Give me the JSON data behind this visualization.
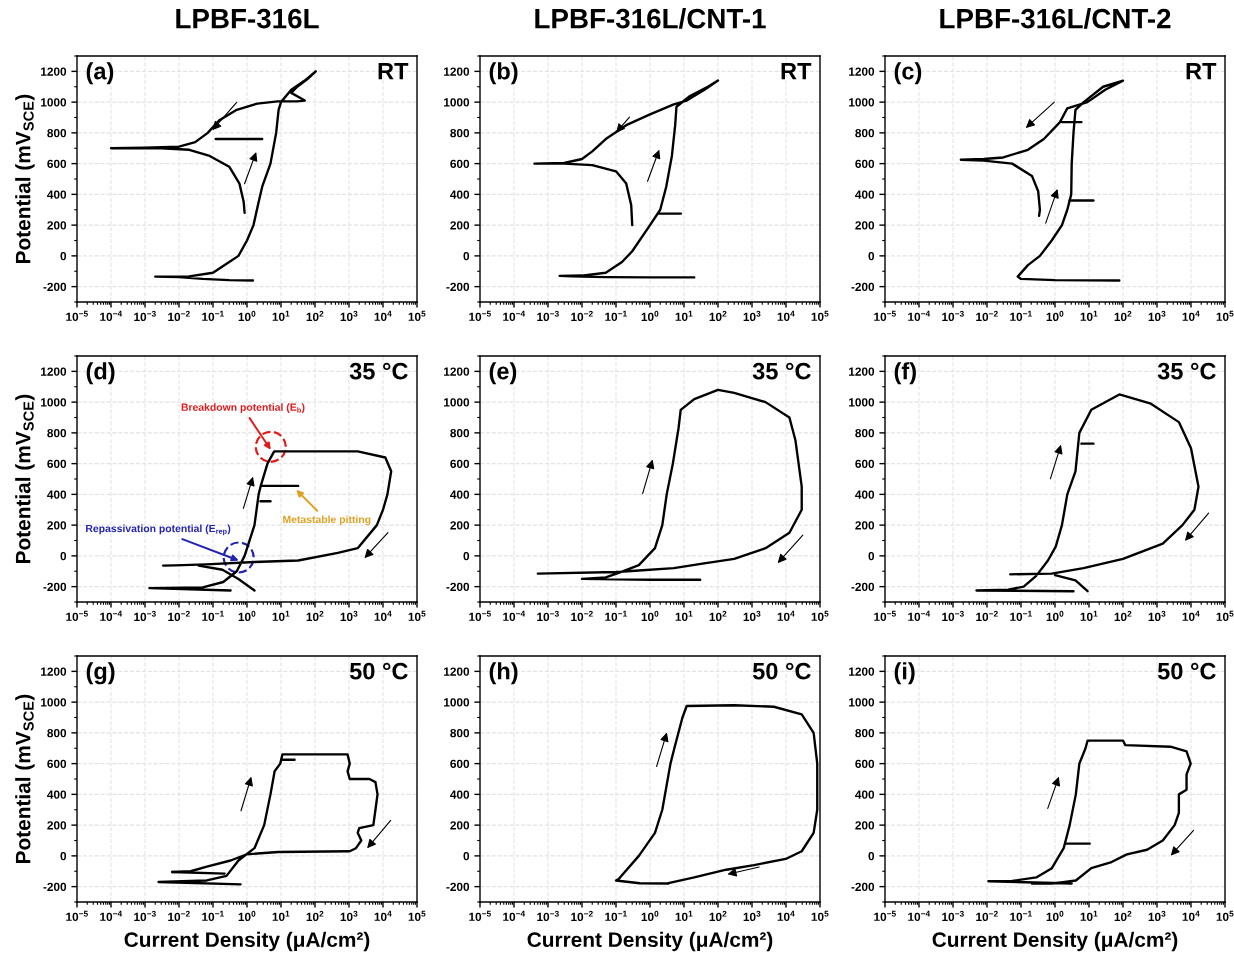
{
  "chart_data": [
    {
      "type": "line",
      "title": "LPBF-316L",
      "ylabel": "Potential (mV$_{SCE}$)",
      "annotations": [
        "(a)",
        "RT"
      ],
      "log": "x",
      "xlim": [
        1e-05,
        100000
      ],
      "xticks": [
        {
          "value": 1e-05,
          "label": "10$^{−5}$"
        },
        {
          "value": 0.0001,
          "label": "10$^{−4}$"
        },
        {
          "value": 0.001,
          "label": "10$^{−3}$"
        },
        {
          "value": 0.01,
          "label": "10$^{−2}$"
        },
        {
          "value": 0.1,
          "label": "10$^{−1}$"
        },
        {
          "value": 1,
          "label": "10$^{0}$"
        },
        {
          "value": 10,
          "label": "10$^{1}$"
        },
        {
          "value": 100,
          "label": "10$^{2}$"
        },
        {
          "value": 1000,
          "label": "10$^{3}$"
        },
        {
          "value": 10000,
          "label": "10$^{4}$"
        },
        {
          "value": 100000,
          "label": "10$^{5}$"
        }
      ],
      "ylim": [
        -300,
        1300
      ],
      "yticks": [
        -200,
        0,
        200,
        400,
        600,
        800,
        1000,
        1200
      ],
      "grid": true,
      "series": [
        {
          "color": "#000000",
          "x": [
            1.5,
            0.3,
            0.05,
            0.01,
            0.002,
            0.02,
            0.1,
            0.3,
            0.56,
            1.0,
            1.55,
            2.2,
            2.8,
            4.9,
            7.2,
            8.5,
            10,
            20,
            50,
            105,
            60,
            30,
            20,
            35,
            50,
            30,
            8,
            2,
            0.5,
            0.15,
            0.07,
            0.03,
            0.01,
            0.001,
            0.0001,
            0.003,
            0.02,
            0.08,
            0.3,
            0.6,
            0.8,
            0.85
          ],
          "values": [
            -160,
            -158,
            -150,
            -138,
            -135,
            -133,
            -110,
            -40,
            0,
            100,
            200,
            350,
            450,
            600,
            800,
            950,
            1000,
            1080,
            1140,
            1200,
            1150,
            1100,
            1060,
            1030,
            1010,
            1005,
            1005,
            990,
            950,
            880,
            800,
            740,
            710,
            703,
            700,
            700,
            690,
            650,
            580,
            470,
            350,
            280
          ]
        },
        {
          "color": "#000000",
          "x": [
            0.12,
            2.8
          ],
          "values": [
            760,
            760
          ]
        }
      ]
    },
    {
      "type": "line",
      "title": "LPBF-316L/CNT-1",
      "annotations": [
        "(b)",
        "RT"
      ],
      "log": "x",
      "xlim": [
        1e-05,
        100000
      ],
      "xticks": [
        {
          "value": 1e-05,
          "label": "10$^{−5}$"
        },
        {
          "value": 0.0001,
          "label": "10$^{−4}$"
        },
        {
          "value": 0.001,
          "label": "10$^{−3}$"
        },
        {
          "value": 0.01,
          "label": "10$^{−2}$"
        },
        {
          "value": 0.1,
          "label": "10$^{−1}$"
        },
        {
          "value": 1,
          "label": "10$^{0}$"
        },
        {
          "value": 10,
          "label": "10$^{1}$"
        },
        {
          "value": 100,
          "label": "10$^{2}$"
        },
        {
          "value": 1000,
          "label": "10$^{3}$"
        },
        {
          "value": 10000,
          "label": "10$^{4}$"
        },
        {
          "value": 100000,
          "label": "10$^{5}$"
        }
      ],
      "ylim": [
        -300,
        1300
      ],
      "yticks": [
        -200,
        0,
        200,
        400,
        600,
        800,
        1000,
        1200
      ],
      "grid": true,
      "series": [
        {
          "color": "#000000",
          "x": [
            20,
            1,
            0.05,
            0.005,
            0.0022,
            0.01,
            0.05,
            0.15,
            0.3,
            1,
            2,
            3,
            4.4,
            5.5,
            6,
            15,
            50,
            100,
            40,
            12,
            5,
            1,
            0.2,
            0.05,
            0.02,
            0.01,
            0.003,
            0.0004,
            0.003,
            0.02,
            0.1,
            0.2,
            0.28,
            0.3
          ],
          "values": [
            -140,
            -140,
            -138,
            -133,
            -130,
            -128,
            -110,
            -40,
            30,
            200,
            300,
            450,
            650,
            850,
            970,
            1040,
            1100,
            1140,
            1080,
            1010,
            985,
            920,
            850,
            760,
            680,
            630,
            604,
            600,
            600,
            590,
            550,
            470,
            330,
            200
          ]
        },
        {
          "color": "#000000",
          "x": [
            1.8,
            8.1
          ],
          "values": [
            275,
            275
          ]
        }
      ]
    },
    {
      "type": "line",
      "title": "LPBF-316L/CNT-2",
      "annotations": [
        "(c)",
        "RT"
      ],
      "log": "x",
      "xlim": [
        1e-05,
        100000
      ],
      "xticks": [
        {
          "value": 1e-05,
          "label": "10$^{−5}$"
        },
        {
          "value": 0.0001,
          "label": "10$^{−4}$"
        },
        {
          "value": 0.001,
          "label": "10$^{−3}$"
        },
        {
          "value": 0.01,
          "label": "10$^{−2}$"
        },
        {
          "value": 0.1,
          "label": "10$^{−1}$"
        },
        {
          "value": 1,
          "label": "10$^{0}$"
        },
        {
          "value": 10,
          "label": "10$^{1}$"
        },
        {
          "value": 100,
          "label": "10$^{2}$"
        },
        {
          "value": 1000,
          "label": "10$^{3}$"
        },
        {
          "value": 10000,
          "label": "10$^{4}$"
        },
        {
          "value": 100000,
          "label": "10$^{5}$"
        }
      ],
      "ylim": [
        -300,
        1300
      ],
      "yticks": [
        -200,
        0,
        200,
        400,
        600,
        800,
        1000,
        1200
      ],
      "grid": true,
      "series": [
        {
          "color": "#000000",
          "x": [
            78,
            1,
            0.1,
            0.08,
            0.16,
            0.36,
            0.8,
            1.6,
            2.3,
            3,
            3.1,
            3.5,
            4,
            7,
            26,
            100,
            30,
            9,
            2.3,
            1.4,
            0.47,
            0.16,
            0.03,
            0.008,
            0.0017,
            0.008,
            0.055,
            0.21,
            0.32,
            0.36,
            0.34
          ],
          "values": [
            -160,
            -158,
            -150,
            -135,
            -60,
            0,
            100,
            200,
            300,
            400,
            600,
            800,
            950,
            1000,
            1100,
            1140,
            1080,
            1000,
            960,
            870,
            760,
            690,
            640,
            630,
            625,
            620,
            600,
            520,
            420,
            300,
            260
          ]
        },
        {
          "color": "#000000",
          "x": [
            1.6,
            6
          ],
          "values": [
            870,
            870
          ]
        },
        {
          "color": "#000000",
          "x": [
            2.7,
            13.5
          ],
          "values": [
            360,
            360
          ]
        }
      ]
    },
    {
      "type": "line",
      "ylabel": "Potential (mV$_{SCE}$)",
      "annotations": [
        "(d)",
        "35 °C",
        {
          "text": "Breakdown potential (E$_{b}$)",
          "x": 5,
          "y": 690
        },
        {
          "text": "Metastable pitting",
          "x": 28,
          "y": 430
        },
        {
          "text": "Repassivation potential (E$_{rep}$)",
          "x": 0.57,
          "y": -30
        }
      ],
      "log": "x",
      "xlim": [
        1e-05,
        100000
      ],
      "xticks": [
        {
          "value": 1e-05,
          "label": "10$^{−5}$"
        },
        {
          "value": 0.0001,
          "label": "10$^{−4}$"
        },
        {
          "value": 0.001,
          "label": "10$^{−3}$"
        },
        {
          "value": 0.01,
          "label": "10$^{−2}$"
        },
        {
          "value": 0.1,
          "label": "10$^{−1}$"
        },
        {
          "value": 1,
          "label": "10$^{0}$"
        },
        {
          "value": 10,
          "label": "10$^{1}$"
        },
        {
          "value": 100,
          "label": "10$^{2}$"
        },
        {
          "value": 1000,
          "label": "10$^{3}$"
        },
        {
          "value": 10000,
          "label": "10$^{4}$"
        },
        {
          "value": 100000,
          "label": "10$^{5}$"
        }
      ],
      "ylim": [
        -300,
        1300
      ],
      "yticks": [
        -200,
        0,
        200,
        400,
        600,
        800,
        1000,
        1200
      ],
      "grid": true,
      "series": [
        {
          "color": "#000000",
          "x": [
            0.33,
            0.00135,
            0.05,
            0.2,
            0.5,
            0.85,
            1.66,
            2.2,
            2.5,
            4,
            6.3,
            1800,
            11700,
            17400,
            13500,
            10000,
            6600,
            1800,
            470,
            32,
            1.66,
            0.063,
            0.0076,
            0.0034
          ],
          "values": [
            -225,
            -210,
            -205,
            -170,
            -100,
            0,
            200,
            400,
            450,
            600,
            680,
            680,
            640,
            550,
            400,
            300,
            200,
            50,
            20,
            -30,
            -40,
            -55,
            -62,
            -63
          ]
        },
        {
          "color": "#000000",
          "x": [
            0.038,
            0.19,
            0.56,
            1.66
          ],
          "values": [
            -63,
            -90,
            -150,
            -225
          ]
        },
        {
          "color": "#000000",
          "x": [
            2.8,
            32
          ],
          "values": [
            455,
            455
          ]
        },
        {
          "color": "#000000",
          "x": [
            2.5,
            4.9
          ],
          "values": [
            355,
            355
          ]
        }
      ]
    },
    {
      "type": "line",
      "annotations": [
        "(e)",
        "35 °C"
      ],
      "log": "x",
      "xlim": [
        1e-05,
        100000
      ],
      "xticks": [
        {
          "value": 1e-05,
          "label": "10$^{−5}$"
        },
        {
          "value": 0.0001,
          "label": "10$^{−4}$"
        },
        {
          "value": 0.001,
          "label": "10$^{−3}$"
        },
        {
          "value": 0.01,
          "label": "10$^{−2}$"
        },
        {
          "value": 0.1,
          "label": "10$^{−1}$"
        },
        {
          "value": 1,
          "label": "10$^{0}$"
        },
        {
          "value": 10,
          "label": "10$^{1}$"
        },
        {
          "value": 100,
          "label": "10$^{2}$"
        },
        {
          "value": 1000,
          "label": "10$^{3}$"
        },
        {
          "value": 10000,
          "label": "10$^{4}$"
        },
        {
          "value": 100000,
          "label": "10$^{5}$"
        }
      ],
      "ylim": [
        -300,
        1300
      ],
      "yticks": [
        -200,
        0,
        200,
        400,
        600,
        800,
        1000,
        1200
      ],
      "grid": true,
      "series": [
        {
          "color": "#000000",
          "x": [
            30,
            1,
            0.01,
            0.05,
            0.12,
            0.47,
            1.4,
            2.3,
            3.1,
            4.7,
            6.9,
            8,
            20,
            100,
            300,
            2500,
            12600,
            19000,
            29000,
            29000,
            12600,
            2500,
            300,
            35,
            5,
            0.47,
            0.1,
            0.0005
          ],
          "values": [
            -155,
            -155,
            -150,
            -140,
            -110,
            -60,
            50,
            200,
            400,
            600,
            830,
            950,
            1020,
            1080,
            1060,
            1000,
            900,
            750,
            450,
            300,
            150,
            50,
            -20,
            -50,
            -80,
            -95,
            -105,
            -115
          ]
        }
      ]
    },
    {
      "type": "line",
      "annotations": [
        "(f)",
        "35 °C"
      ],
      "log": "x",
      "xlim": [
        1e-05,
        100000
      ],
      "xticks": [
        {
          "value": 1e-05,
          "label": "10$^{−5}$"
        },
        {
          "value": 0.0001,
          "label": "10$^{−4}$"
        },
        {
          "value": 0.001,
          "label": "10$^{−3}$"
        },
        {
          "value": 0.01,
          "label": "10$^{−2}$"
        },
        {
          "value": 0.1,
          "label": "10$^{−1}$"
        },
        {
          "value": 1,
          "label": "10$^{0}$"
        },
        {
          "value": 10,
          "label": "10$^{1}$"
        },
        {
          "value": 100,
          "label": "10$^{2}$"
        },
        {
          "value": 1000,
          "label": "10$^{3}$"
        },
        {
          "value": 10000,
          "label": "10$^{4}$"
        },
        {
          "value": 100000,
          "label": "10$^{5}$"
        }
      ],
      "ylim": [
        -300,
        1300
      ],
      "yticks": [
        -200,
        0,
        200,
        400,
        600,
        800,
        1000,
        1200
      ],
      "grid": true,
      "series": [
        {
          "color": "#000000",
          "x": [
            3.5,
            0.0049,
            0.042,
            0.12,
            0.28,
            0.62,
            1.05,
            1.6,
            2.3,
            4,
            5.2,
            11.7,
            78,
            660,
            4400,
            10000,
            16600,
            12600,
            5600,
            1480,
            100,
            6.9,
            0.8,
            0.048
          ],
          "values": [
            -230,
            -225,
            -220,
            -200,
            -130,
            -30,
            60,
            200,
            400,
            550,
            800,
            950,
            1050,
            990,
            870,
            700,
            450,
            300,
            200,
            80,
            -20,
            -80,
            -115,
            -120
          ]
        },
        {
          "color": "#000000",
          "x": [
            1,
            4,
            9.1
          ],
          "values": [
            -125,
            -160,
            -230
          ]
        },
        {
          "color": "#000000",
          "x": [
            6,
            13.5
          ],
          "values": [
            730,
            730
          ]
        }
      ]
    },
    {
      "type": "line",
      "xlabel": "Current Density (μA/cm²)",
      "ylabel": "Potential (mV$_{SCE}$)",
      "annotations": [
        "(g)",
        "50 °C"
      ],
      "log": "x",
      "xlim": [
        1e-05,
        100000
      ],
      "xticks": [
        {
          "value": 1e-05,
          "label": "10$^{−5}$"
        },
        {
          "value": 0.0001,
          "label": "10$^{−4}$"
        },
        {
          "value": 0.001,
          "label": "10$^{−3}$"
        },
        {
          "value": 0.01,
          "label": "10$^{−2}$"
        },
        {
          "value": 0.1,
          "label": "10$^{−1}$"
        },
        {
          "value": 1,
          "label": "10$^{0}$"
        },
        {
          "value": 10,
          "label": "10$^{1}$"
        },
        {
          "value": 100,
          "label": "10$^{2}$"
        },
        {
          "value": 1000,
          "label": "10$^{3}$"
        },
        {
          "value": 10000,
          "label": "10$^{4}$"
        },
        {
          "value": 100000,
          "label": "10$^{5}$"
        }
      ],
      "ylim": [
        -300,
        1300
      ],
      "yticks": [
        -200,
        0,
        200,
        400,
        600,
        800,
        1000,
        1200
      ],
      "grid": true,
      "series": [
        {
          "color": "#000000",
          "x": [
            0.65,
            0.0025,
            0.066,
            0.25,
            0.56,
            1.66,
            3.2,
            4.9,
            6.5,
            9.5,
            11,
            910,
            1050,
            910,
            1050,
            4000,
            6000,
            6900,
            6000,
            5200,
            2000,
            1800,
            2300,
            1600,
            1050,
            8.3,
            0.98,
            0.33,
            0.066,
            0.022,
            0.0063
          ],
          "values": [
            -185,
            -170,
            -160,
            -130,
            -30,
            50,
            200,
            400,
            550,
            600,
            660,
            660,
            600,
            550,
            500,
            500,
            480,
            400,
            300,
            200,
            180,
            150,
            100,
            50,
            30,
            25,
            10,
            -30,
            -70,
            -100,
            -105
          ]
        },
        {
          "color": "#000000",
          "x": [
            0.0063,
            0.22
          ],
          "values": [
            -105,
            -115
          ]
        },
        {
          "color": "#000000",
          "x": [
            11,
            25
          ],
          "values": [
            625,
            625
          ]
        }
      ]
    },
    {
      "type": "line",
      "xlabel": "Current Density (μA/cm²)",
      "annotations": [
        "(h)",
        "50 °C"
      ],
      "log": "x",
      "xlim": [
        1e-05,
        100000
      ],
      "xticks": [
        {
          "value": 1e-05,
          "label": "10$^{−5}$"
        },
        {
          "value": 0.0001,
          "label": "10$^{−4}$"
        },
        {
          "value": 0.001,
          "label": "10$^{−3}$"
        },
        {
          "value": 0.01,
          "label": "10$^{−2}$"
        },
        {
          "value": 0.1,
          "label": "10$^{−1}$"
        },
        {
          "value": 1,
          "label": "10$^{0}$"
        },
        {
          "value": 10,
          "label": "10$^{1}$"
        },
        {
          "value": 100,
          "label": "10$^{2}$"
        },
        {
          "value": 1000,
          "label": "10$^{3}$"
        },
        {
          "value": 10000,
          "label": "10$^{4}$"
        },
        {
          "value": 100000,
          "label": "10$^{5}$"
        }
      ],
      "ylim": [
        -300,
        1300
      ],
      "yticks": [
        -200,
        0,
        200,
        400,
        600,
        800,
        1000,
        1200
      ],
      "grid": true,
      "series": [
        {
          "color": "#000000",
          "x": [
            3.5,
            0.5,
            0.1,
            0.12,
            0.47,
            1.4,
            2.3,
            4,
            5.2,
            9,
            12,
            300,
            4400,
            29000,
            65000,
            83000,
            83000,
            65000,
            29000,
            9800,
            1150,
            175,
            46,
            20,
            3
          ],
          "values": [
            -180,
            -178,
            -160,
            -150,
            0,
            150,
            300,
            600,
            700,
            900,
            975,
            980,
            970,
            920,
            800,
            600,
            300,
            150,
            30,
            -20,
            -60,
            -90,
            -120,
            -140,
            -180
          ]
        }
      ]
    },
    {
      "type": "line",
      "xlabel": "Current Density (μA/cm²)",
      "annotations": [
        "(i)",
        "50 °C"
      ],
      "log": "x",
      "xlim": [
        1e-05,
        100000
      ],
      "xticks": [
        {
          "value": 1e-05,
          "label": "10$^{−5}$"
        },
        {
          "value": 0.0001,
          "label": "10$^{−4}$"
        },
        {
          "value": 0.001,
          "label": "10$^{−3}$"
        },
        {
          "value": 0.01,
          "label": "10$^{−2}$"
        },
        {
          "value": 0.1,
          "label": "10$^{−1}$"
        },
        {
          "value": 1,
          "label": "10$^{0}$"
        },
        {
          "value": 10,
          "label": "10$^{1}$"
        },
        {
          "value": 100,
          "label": "10$^{2}$"
        },
        {
          "value": 1000,
          "label": "10$^{3}$"
        },
        {
          "value": 10000,
          "label": "10$^{4}$"
        },
        {
          "value": 100000,
          "label": "10$^{5}$"
        }
      ],
      "ylim": [
        -300,
        1300
      ],
      "yticks": [
        -200,
        0,
        200,
        400,
        600,
        800,
        1000,
        1200
      ],
      "grid": true,
      "series": [
        {
          "color": "#000000",
          "x": [
            3.1,
            0.011,
            0.055,
            0.28,
            0.81,
            1.8,
            2.7,
            4.1,
            5.2,
            7.9,
            9.1,
            100,
            117,
            2500,
            7400,
            9800,
            7400,
            7400,
            4400,
            4400,
            3300,
            1480,
            510,
            130,
            46,
            11.7,
            4.1,
            0.81,
            0.21
          ],
          "values": [
            -180,
            -165,
            -163,
            -140,
            -80,
            50,
            200,
            400,
            600,
            700,
            750,
            750,
            720,
            710,
            680,
            600,
            530,
            430,
            400,
            280,
            200,
            100,
            40,
            10,
            -40,
            -80,
            -160,
            -180,
            -180
          ]
        },
        {
          "color": "#000000",
          "x": [
            2.1,
            10.5
          ],
          "values": [
            80,
            80
          ]
        }
      ]
    }
  ]
}
